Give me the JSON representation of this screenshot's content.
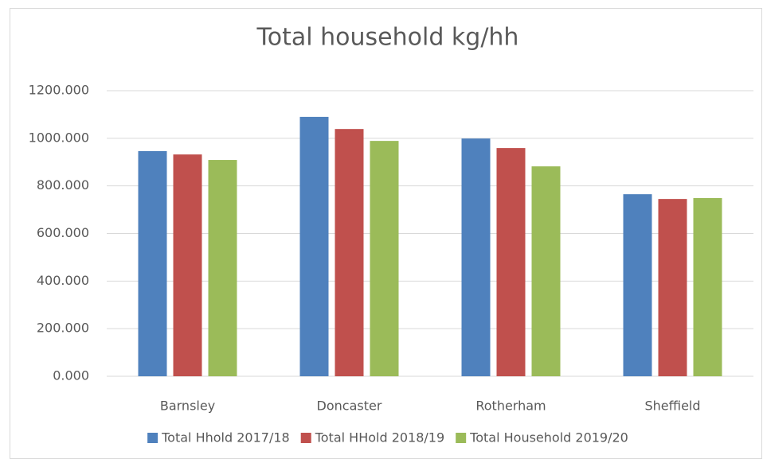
{
  "chart_data": {
    "type": "bar",
    "title": "Total household kg/hh",
    "categories": [
      "Barnsley",
      "Doncaster",
      "Rotherham",
      "Sheffield"
    ],
    "series": [
      {
        "name": "Total Hhold 2017/18",
        "color": "#4f81bd",
        "values": [
          946,
          1090,
          999,
          765
        ]
      },
      {
        "name": "Total HHold 2018/19",
        "color": "#c0504d",
        "values": [
          932,
          1039,
          959,
          745
        ]
      },
      {
        "name": "Total Household 2019/20",
        "color": "#9bbb59",
        "values": [
          909,
          989,
          882,
          749
        ]
      }
    ],
    "ylim": [
      0,
      1200
    ],
    "yticks": [
      {
        "value": 0,
        "label": "0.000"
      },
      {
        "value": 200,
        "label": "200.000"
      },
      {
        "value": 400,
        "label": "400.000"
      },
      {
        "value": 600,
        "label": "600.000"
      },
      {
        "value": 800,
        "label": "800.000"
      },
      {
        "value": 1000,
        "label": "1000.000"
      },
      {
        "value": 1200,
        "label": "1200.000"
      }
    ],
    "grid": true,
    "legend": "bottom"
  }
}
